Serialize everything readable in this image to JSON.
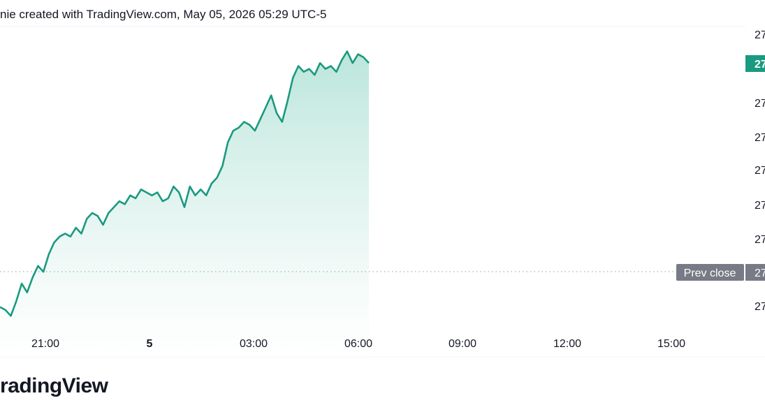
{
  "header": {
    "credit": "nie created with TradingView.com, May 05, 2026 05:29 UTC-5"
  },
  "brand": {
    "name": "radingView"
  },
  "colors": {
    "line": "#1a9a80",
    "fill_top": "#b7e4d9",
    "fill_bottom": "#ffffff",
    "prev_close_line": "#9598a1",
    "prev_close_label_bg": "#787b86",
    "price_label_bg": "#1a9a80"
  },
  "chart_data": {
    "type": "area",
    "x_ticks": [
      {
        "label": "21:00",
        "bold": false
      },
      {
        "label": "5",
        "bold": true
      },
      {
        "label": "03:00",
        "bold": false
      },
      {
        "label": "06:00",
        "bold": false
      },
      {
        "label": "09:00",
        "bold": false
      },
      {
        "label": "12:00",
        "bold": false
      },
      {
        "label": "15:00",
        "bold": false
      }
    ],
    "y_ticks": [
      "27",
      "27",
      "27",
      "27",
      "27",
      "27",
      "27",
      "27"
    ],
    "last_price_label": "27",
    "prev_close_tag": "Prev close",
    "prev_close_value": "27",
    "series": [
      {
        "values": [
          0.06,
          0.05,
          0.03,
          0.08,
          0.14,
          0.11,
          0.16,
          0.2,
          0.18,
          0.24,
          0.28,
          0.3,
          0.31,
          0.3,
          0.33,
          0.31,
          0.36,
          0.38,
          0.37,
          0.34,
          0.38,
          0.4,
          0.42,
          0.41,
          0.44,
          0.43,
          0.46,
          0.45,
          0.44,
          0.45,
          0.42,
          0.43,
          0.47,
          0.45,
          0.4,
          0.47,
          0.44,
          0.46,
          0.44,
          0.48,
          0.5,
          0.54,
          0.62,
          0.66,
          0.67,
          0.69,
          0.68,
          0.66,
          0.7,
          0.74,
          0.78,
          0.72,
          0.69,
          0.76,
          0.84,
          0.88,
          0.86,
          0.87,
          0.85,
          0.89,
          0.87,
          0.88,
          0.86,
          0.9,
          0.93,
          0.89,
          0.92,
          0.91,
          0.89
        ]
      }
    ]
  }
}
